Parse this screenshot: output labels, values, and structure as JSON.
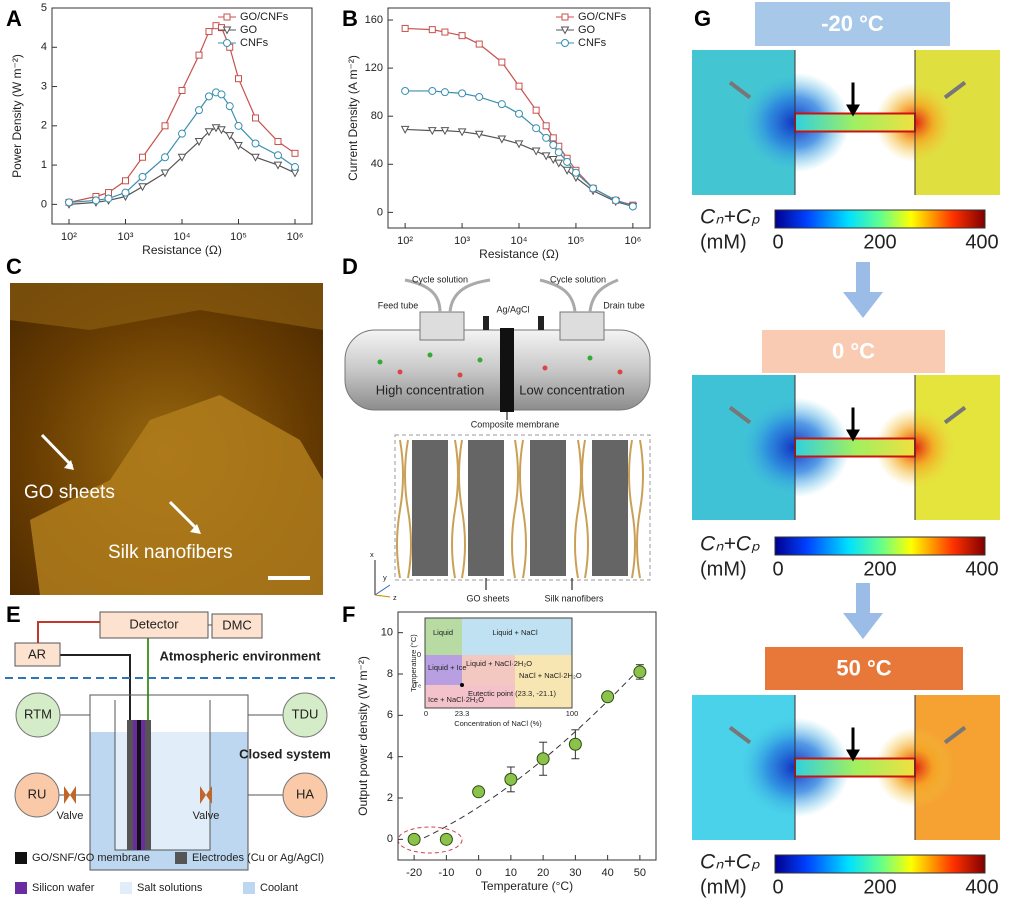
{
  "panel_labels": [
    "A",
    "B",
    "C",
    "D",
    "E",
    "F",
    "G"
  ],
  "chart_data": [
    {
      "type": "line",
      "xlabel": "Resistance (Ω)",
      "ylabel": "Power Density (W m⁻²)",
      "xscale": "log",
      "x": [
        100,
        300,
        500,
        1000,
        2000,
        5000,
        10000,
        20000,
        30000,
        40000,
        50000,
        70000,
        100000,
        200000,
        500000,
        1000000
      ],
      "series": [
        {
          "name": "GO/CNFs",
          "color": "#c9504c",
          "marker": "square",
          "values": [
            0.05,
            0.2,
            0.3,
            0.6,
            1.2,
            2.0,
            2.9,
            3.8,
            4.4,
            4.55,
            4.5,
            4.0,
            3.2,
            2.2,
            1.6,
            1.3
          ]
        },
        {
          "name": "GO",
          "color": "#555555",
          "marker": "triangle-down",
          "values": [
            0,
            0.05,
            0.1,
            0.2,
            0.45,
            0.8,
            1.2,
            1.6,
            1.85,
            1.95,
            1.9,
            1.75,
            1.5,
            1.2,
            1.0,
            0.8
          ]
        },
        {
          "name": "CNFs",
          "color": "#3a8fb0",
          "marker": "circle",
          "values": [
            0.05,
            0.1,
            0.15,
            0.3,
            0.7,
            1.2,
            1.8,
            2.4,
            2.75,
            2.85,
            2.8,
            2.5,
            2.0,
            1.55,
            1.25,
            0.95
          ]
        }
      ],
      "xlim": [
        50,
        2000000
      ],
      "ylim": [
        -0.5,
        5
      ],
      "xticks": [
        {
          "value": 100,
          "label": "10²"
        },
        {
          "value": 1000,
          "label": "10³"
        },
        {
          "value": 10000,
          "label": "10⁴"
        },
        {
          "value": 100000,
          "label": "10⁵"
        },
        {
          "value": 1000000,
          "label": "10⁶"
        }
      ],
      "yticks": [
        0,
        1,
        2,
        3,
        4,
        5
      ],
      "legend": "upper right"
    },
    {
      "type": "line",
      "xlabel": "Resistance (Ω)",
      "ylabel": "Current Density (A m⁻²)",
      "xscale": "log",
      "x": [
        100,
        300,
        500,
        1000,
        2000,
        5000,
        10000,
        20000,
        30000,
        40000,
        50000,
        70000,
        100000,
        200000,
        500000,
        1000000
      ],
      "series": [
        {
          "name": "GO/CNFs",
          "color": "#c9504c",
          "marker": "square",
          "values": [
            153,
            152,
            150,
            147,
            140,
            125,
            105,
            85,
            72,
            62,
            55,
            45,
            35,
            20,
            10,
            6
          ]
        },
        {
          "name": "GO",
          "color": "#555555",
          "marker": "triangle-down",
          "values": [
            69,
            68,
            68,
            67,
            65,
            61,
            57,
            51,
            47,
            44,
            41,
            35,
            29,
            18,
            9,
            5
          ]
        },
        {
          "name": "CNFs",
          "color": "#3a8fb0",
          "marker": "circle",
          "values": [
            101,
            101,
            100,
            99,
            96,
            90,
            82,
            70,
            62,
            56,
            50,
            42,
            33,
            20,
            10,
            5
          ]
        }
      ],
      "xlim": [
        50,
        2000000
      ],
      "ylim": [
        -13,
        170
      ],
      "xticks": [
        {
          "value": 100,
          "label": "10²"
        },
        {
          "value": 1000,
          "label": "10³"
        },
        {
          "value": 10000,
          "label": "10⁴"
        },
        {
          "value": 100000,
          "label": "10⁵"
        },
        {
          "value": 1000000,
          "label": "10⁶"
        }
      ],
      "yticks": [
        0,
        40,
        80,
        120,
        160
      ],
      "legend": "upper right"
    },
    {
      "type": "scatter",
      "xlabel": "Temperature (°C)",
      "ylabel": "Output power density (W m⁻²)",
      "x": [
        -20,
        -10,
        0,
        10,
        20,
        30,
        40,
        50
      ],
      "values": [
        0,
        0,
        2.3,
        2.9,
        3.9,
        4.6,
        6.9,
        8.1
      ],
      "errors": [
        0,
        0,
        0.15,
        0.6,
        0.8,
        0.7,
        0.2,
        0.35
      ],
      "color": "#8bc34a",
      "xlim": [
        -25,
        55
      ],
      "ylim": [
        -1,
        11
      ],
      "xticks": [
        -20,
        -10,
        0,
        10,
        20,
        30,
        40,
        50
      ],
      "yticks": [
        0,
        2,
        4,
        6,
        8,
        10
      ]
    }
  ],
  "panel_c": {
    "labels": [
      "GO sheets",
      "Silk nanofibers"
    ]
  },
  "panel_d": {
    "cycle_left": "Cycle solution",
    "cycle_right": "Cycle solution",
    "feed": "Feed tube",
    "electrode": "Ag/AgCl",
    "drain": "Drain tube",
    "high": "High concentration",
    "low": "Low concentration",
    "membrane": "Composite membrane",
    "go": "GO sheets",
    "silk": "Silk nanofibers",
    "axes": [
      "x",
      "y",
      "z"
    ]
  },
  "panel_e": {
    "detector": "Detector",
    "dmc": "DMC",
    "ar": "AR",
    "atmosphere": "Atmospheric environment",
    "rtm": "RTM",
    "tdu": "TDU",
    "closed": "Closed system",
    "ru": "RU",
    "ha": "HA",
    "valve_left": "Valve",
    "valve_right": "Valve",
    "legend": [
      "GO/SNF/GO membrane",
      "Electrodes (Cu or Ag/AgCl)",
      "Silicon wafer",
      "Salt solutions",
      "Coolant"
    ]
  },
  "panel_f_inset": {
    "regions": [
      "Liquid",
      "Liquid + NaCl",
      "Liquid + Ice",
      "Liquid + NaCl·2H₂O",
      "Ice + NaCl·2H₂O",
      "NaCl + NaCl·2H₂O"
    ],
    "eutectic": "Eutectic point (23.3, -21.1)",
    "ylabel": "Temperature (°C)",
    "xlabel": "Concentration of NaCl (%)",
    "xticks": [
      "0",
      "23.3",
      "100"
    ],
    "yticks": [
      "0",
      "Tₑ"
    ]
  },
  "panel_g": {
    "blocks": [
      {
        "temperature": "-20 °C",
        "label_color": "#a7c8e8",
        "symbol": "Cₙ+Cₚ",
        "unit": "(mM)",
        "ticks": [
          "0",
          "200",
          "400"
        ]
      },
      {
        "temperature": "0 °C",
        "label_color": "#f8cbb2",
        "symbol": "Cₙ+Cₚ",
        "unit": "(mM)",
        "ticks": [
          "0",
          "200",
          "400"
        ]
      },
      {
        "temperature": "50 °C",
        "label_color": "#e8773a",
        "symbol": "Cₙ+Cₚ",
        "unit": "(mM)",
        "ticks": [
          "0",
          "200",
          "400"
        ]
      }
    ]
  }
}
